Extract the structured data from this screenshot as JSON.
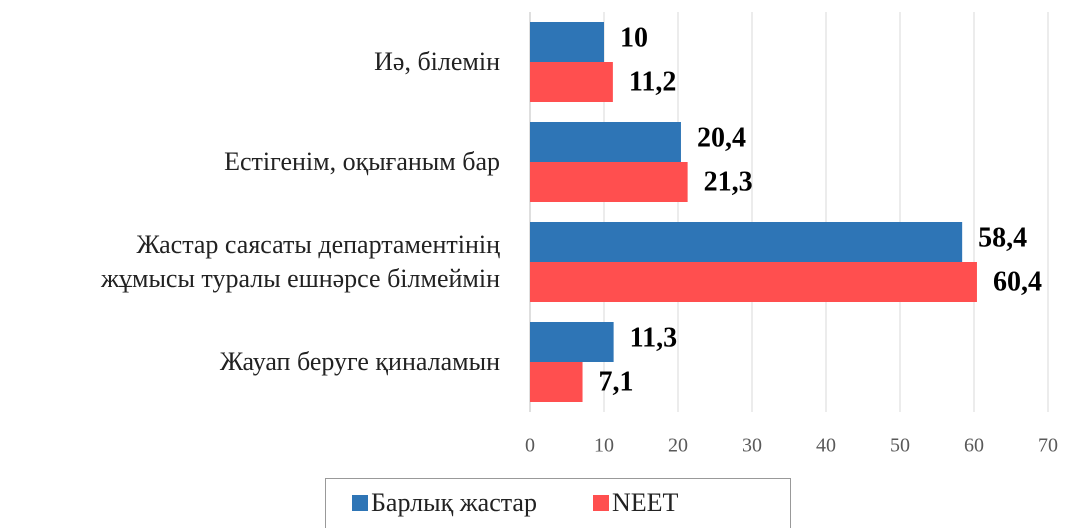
{
  "chart_data": {
    "type": "bar",
    "orientation": "horizontal",
    "categories": [
      "Иә, білемін",
      "Естігенім, оқығаным бар",
      "Жастар саясаты департаментінің\nжұмысы туралы ешнәрсе білмеймін",
      "Жауап беруге қиналамын"
    ],
    "series": [
      {
        "name": "Барлық жастар",
        "color": "#2e75b6",
        "values": [
          10,
          20.4,
          58.4,
          11.3
        ],
        "value_labels": [
          "10",
          "20,4",
          "58,4",
          "11,3"
        ]
      },
      {
        "name": "NEET",
        "color": "#ff4f4f",
        "values": [
          11.2,
          21.3,
          60.4,
          7.1
        ],
        "value_labels": [
          "11,2",
          "21,3",
          "60,4",
          "7,1"
        ]
      }
    ],
    "xlim": [
      0,
      70
    ],
    "xticks": [
      0,
      10,
      20,
      30,
      40,
      50,
      60,
      70
    ],
    "grid": true,
    "legend": "bottom"
  }
}
